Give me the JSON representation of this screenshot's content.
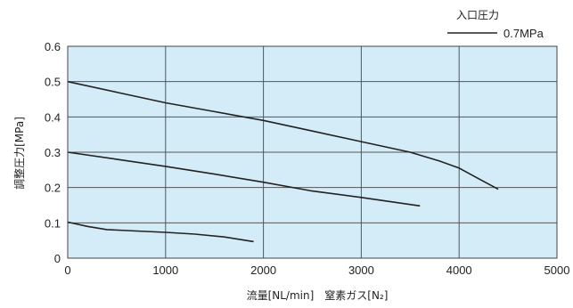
{
  "chart_data": {
    "type": "line",
    "title": "",
    "xlabel": "流量[NL/min]　窒素ガス[N₂]",
    "ylabel": "調整圧力[MPa]",
    "xlim": [
      0,
      5000
    ],
    "ylim": [
      0,
      0.6
    ],
    "x_ticks": [
      "0",
      "1000",
      "2000",
      "3000",
      "4000",
      "5000"
    ],
    "y_ticks": [
      "0",
      "0.1",
      "0.2",
      "0.3",
      "0.4",
      "0.5",
      "0.6"
    ],
    "grid": true,
    "plot_background": "#d4ebf8",
    "line_color": "#222222",
    "legend": {
      "title": "入口圧力",
      "entries": [
        "0.7MPa"
      ],
      "position": "top-right"
    },
    "series": [
      {
        "x": [
          0,
          500,
          1000,
          1500,
          2000,
          2500,
          3000,
          3500,
          3800,
          4000,
          4200,
          4400
        ],
        "y": [
          0.5,
          0.47,
          0.44,
          0.415,
          0.39,
          0.36,
          0.33,
          0.3,
          0.275,
          0.255,
          0.225,
          0.195
        ]
      },
      {
        "x": [
          0,
          500,
          1000,
          1500,
          2000,
          2500,
          3000,
          3600
        ],
        "y": [
          0.3,
          0.28,
          0.26,
          0.238,
          0.215,
          0.19,
          0.172,
          0.148
        ]
      },
      {
        "x": [
          0,
          200,
          400,
          700,
          1000,
          1300,
          1600,
          1900
        ],
        "y": [
          0.102,
          0.09,
          0.081,
          0.077,
          0.073,
          0.068,
          0.06,
          0.047
        ]
      }
    ]
  }
}
